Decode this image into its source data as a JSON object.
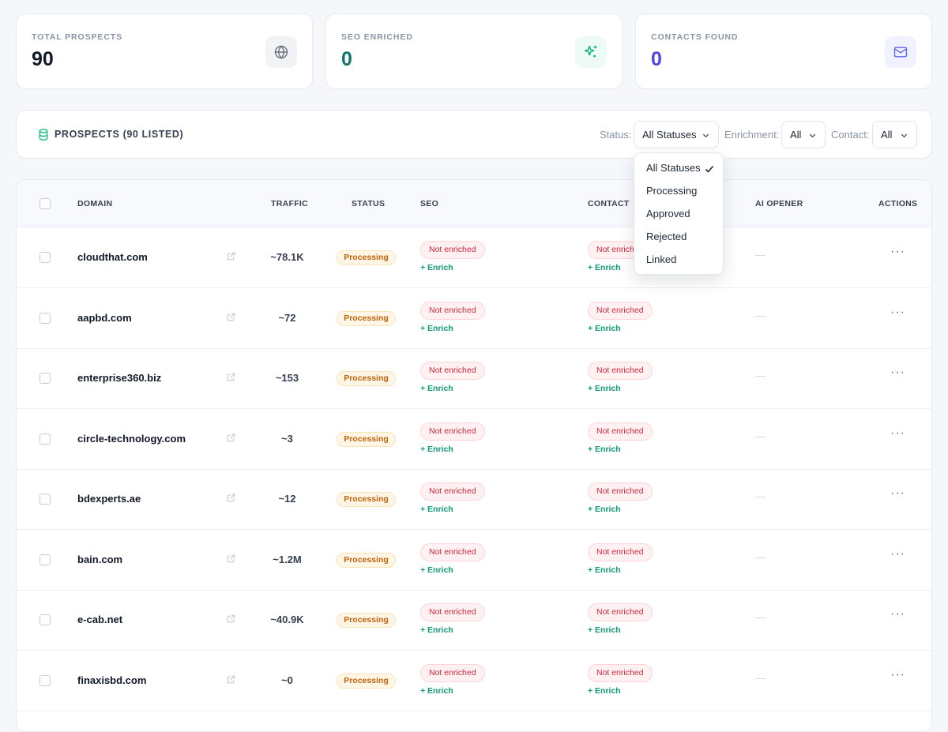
{
  "stats": [
    {
      "label": "TOTAL PROSPECTS",
      "value": "90",
      "icon": "globe-icon",
      "value_color": "#111827",
      "icon_bg": "#f1f3f7",
      "icon_color": "#6b7280"
    },
    {
      "label": "SEO ENRICHED",
      "value": "0",
      "icon": "sparkles-icon",
      "value_color": "#0f766e",
      "icon_bg": "#eefaf6",
      "icon_color": "#10b981"
    },
    {
      "label": "CONTACTS FOUND",
      "value": "0",
      "icon": "mail-icon",
      "value_color": "#4f46e5",
      "icon_bg": "#f1f2ff",
      "icon_color": "#6366f1"
    }
  ],
  "toolbar": {
    "title": "PROSPECTS (90 LISTED)",
    "status_label": "Status:",
    "status_value": "All Statuses",
    "enrichment_label": "Enrichment:",
    "enrichment_value": "All",
    "contact_label": "Contact:",
    "contact_value": "All"
  },
  "status_dropdown": {
    "options": [
      "All Statuses",
      "Processing",
      "Approved",
      "Rejected",
      "Linked"
    ],
    "selected": "All Statuses"
  },
  "table": {
    "headers": {
      "domain": "DOMAIN",
      "traffic": "TRAFFIC",
      "status": "STATUS",
      "seo": "SEO",
      "contact": "CONTACT",
      "ai_opener": "AI OPENER",
      "actions": "ACTIONS"
    },
    "rows": [
      {
        "domain": "cloudthat.com",
        "traffic": "~78.1K",
        "status": "Processing",
        "seo": "Not enriched",
        "seo_action": "+ Enrich",
        "contact": "Not enriched",
        "contact_action": "+ Enrich",
        "ai_opener": "—",
        "actions": "···"
      },
      {
        "domain": "aapbd.com",
        "traffic": "~72",
        "status": "Processing",
        "seo": "Not enriched",
        "seo_action": "+ Enrich",
        "contact": "Not enriched",
        "contact_action": "+ Enrich",
        "ai_opener": "—",
        "actions": "···"
      },
      {
        "domain": "enterprise360.biz",
        "traffic": "~153",
        "status": "Processing",
        "seo": "Not enriched",
        "seo_action": "+ Enrich",
        "contact": "Not enriched",
        "contact_action": "+ Enrich",
        "ai_opener": "—",
        "actions": "···"
      },
      {
        "domain": "circle-technology.com",
        "traffic": "~3",
        "status": "Processing",
        "seo": "Not enriched",
        "seo_action": "+ Enrich",
        "contact": "Not enriched",
        "contact_action": "+ Enrich",
        "ai_opener": "—",
        "actions": "···"
      },
      {
        "domain": "bdexperts.ae",
        "traffic": "~12",
        "status": "Processing",
        "seo": "Not enriched",
        "seo_action": "+ Enrich",
        "contact": "Not enriched",
        "contact_action": "+ Enrich",
        "ai_opener": "—",
        "actions": "···"
      },
      {
        "domain": "bain.com",
        "traffic": "~1.2M",
        "status": "Processing",
        "seo": "Not enriched",
        "seo_action": "+ Enrich",
        "contact": "Not enriched",
        "contact_action": "+ Enrich",
        "ai_opener": "—",
        "actions": "···"
      },
      {
        "domain": "e-cab.net",
        "traffic": "~40.9K",
        "status": "Processing",
        "seo": "Not enriched",
        "seo_action": "+ Enrich",
        "contact": "Not enriched",
        "contact_action": "+ Enrich",
        "ai_opener": "—",
        "actions": "···"
      },
      {
        "domain": "finaxisbd.com",
        "traffic": "~0",
        "status": "Processing",
        "seo": "Not enriched",
        "seo_action": "+ Enrich",
        "contact": "Not enriched",
        "contact_action": "+ Enrich",
        "ai_opener": "—",
        "actions": "···"
      }
    ]
  }
}
